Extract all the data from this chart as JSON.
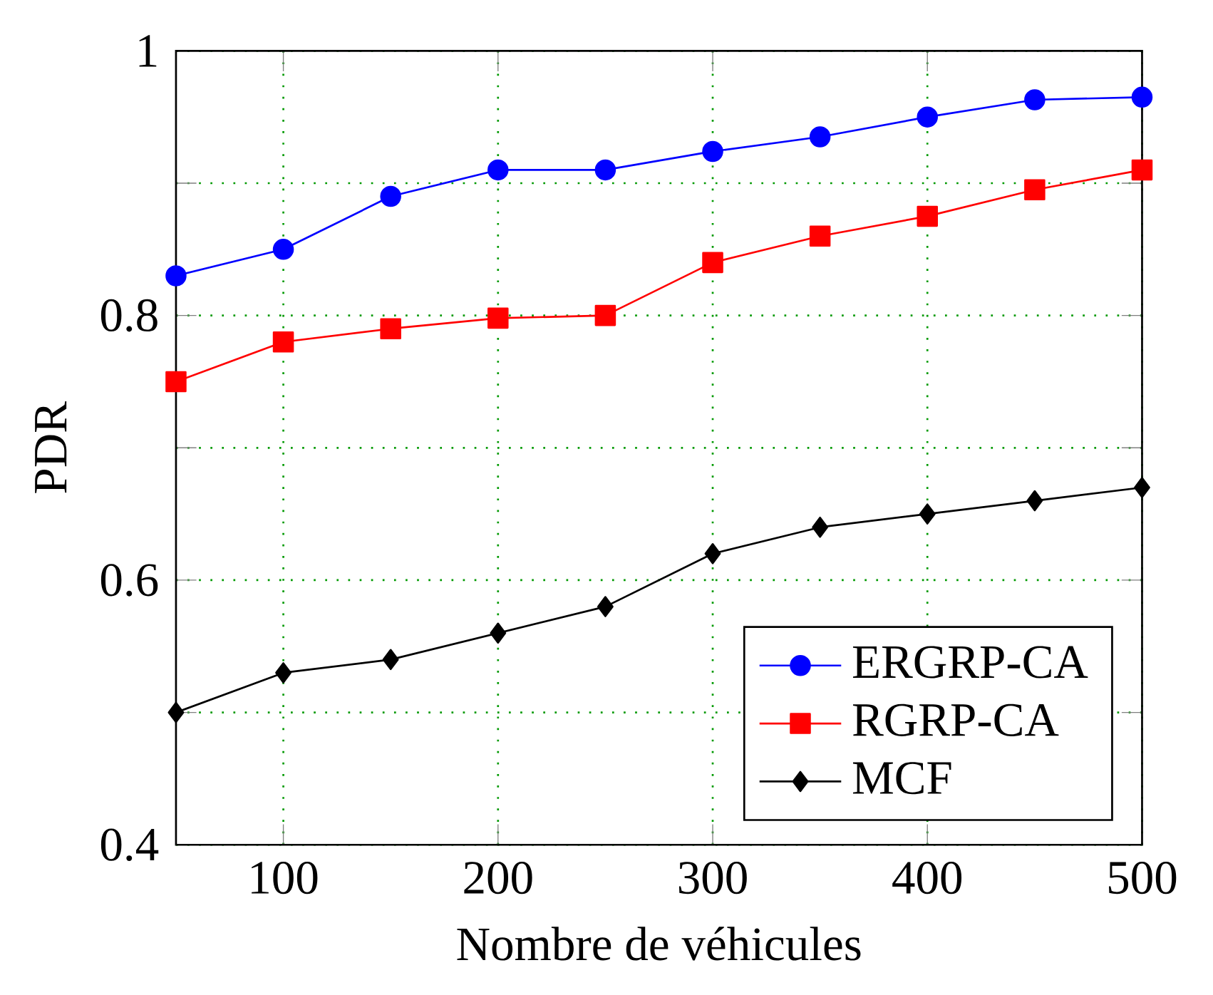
{
  "chart_data": {
    "type": "line",
    "xlabel": "Nombre de véhicules",
    "ylabel": "PDR",
    "x": [
      50,
      100,
      150,
      200,
      250,
      300,
      350,
      400,
      450,
      500
    ],
    "xlim": [
      50,
      500
    ],
    "xticks": [
      100,
      200,
      300,
      400,
      500
    ],
    "ylim": [
      0.4,
      1
    ],
    "yticks": [
      0.4,
      {
        "value": 0.5,
        "label": null
      },
      0.6,
      {
        "value": 0.7,
        "label": null
      },
      0.8,
      {
        "value": 0.9,
        "label": null
      },
      1
    ],
    "grid": true,
    "legend": "bottom right",
    "line_style": "solid",
    "series": [
      {
        "name": "ERGRP-CA",
        "color": "#0000ff",
        "marker": "circle",
        "values": [
          0.83,
          0.85,
          0.89,
          0.91,
          0.91,
          0.924,
          0.935,
          0.95,
          0.963,
          0.965
        ]
      },
      {
        "name": "RGRP-CA",
        "color": "#ff0000",
        "marker": "square",
        "values": [
          0.75,
          0.78,
          0.79,
          0.798,
          0.8,
          0.84,
          0.86,
          0.875,
          0.895,
          0.91
        ]
      },
      {
        "name": "MCF",
        "color": "#000000",
        "marker": "diamond",
        "values": [
          0.5,
          0.53,
          0.54,
          0.56,
          0.58,
          0.62,
          0.64,
          0.65,
          0.66,
          0.67
        ]
      }
    ]
  }
}
